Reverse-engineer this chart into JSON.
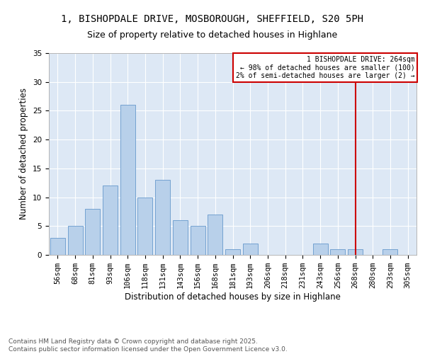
{
  "title": "1, BISHOPDALE DRIVE, MOSBOROUGH, SHEFFIELD, S20 5PH",
  "subtitle": "Size of property relative to detached houses in Highlane",
  "xlabel": "Distribution of detached houses by size in Highlane",
  "ylabel": "Number of detached properties",
  "bar_labels": [
    "56sqm",
    "68sqm",
    "81sqm",
    "93sqm",
    "106sqm",
    "118sqm",
    "131sqm",
    "143sqm",
    "156sqm",
    "168sqm",
    "181sqm",
    "193sqm",
    "206sqm",
    "218sqm",
    "231sqm",
    "243sqm",
    "256sqm",
    "268sqm",
    "280sqm",
    "293sqm",
    "305sqm"
  ],
  "bar_values": [
    3,
    5,
    8,
    12,
    26,
    10,
    13,
    6,
    5,
    7,
    1,
    2,
    0,
    0,
    0,
    2,
    1,
    1,
    0,
    1,
    0
  ],
  "bar_color": "#b8d0ea",
  "bar_edgecolor": "#6699cc",
  "vline_x_index": 17,
  "vline_color": "#cc0000",
  "annotation_text": "1 BISHOPDALE DRIVE: 264sqm\n← 98% of detached houses are smaller (100)\n2% of semi-detached houses are larger (2) →",
  "annotation_box_color": "#cc0000",
  "ylim": [
    0,
    35
  ],
  "yticks": [
    0,
    5,
    10,
    15,
    20,
    25,
    30,
    35
  ],
  "footer_text": "Contains HM Land Registry data © Crown copyright and database right 2025.\nContains public sector information licensed under the Open Government Licence v3.0.",
  "bg_color": "#dde8f5",
  "title_fontsize": 10,
  "subtitle_fontsize": 9,
  "axis_label_fontsize": 8.5,
  "tick_fontsize": 7.5,
  "footer_fontsize": 6.5
}
